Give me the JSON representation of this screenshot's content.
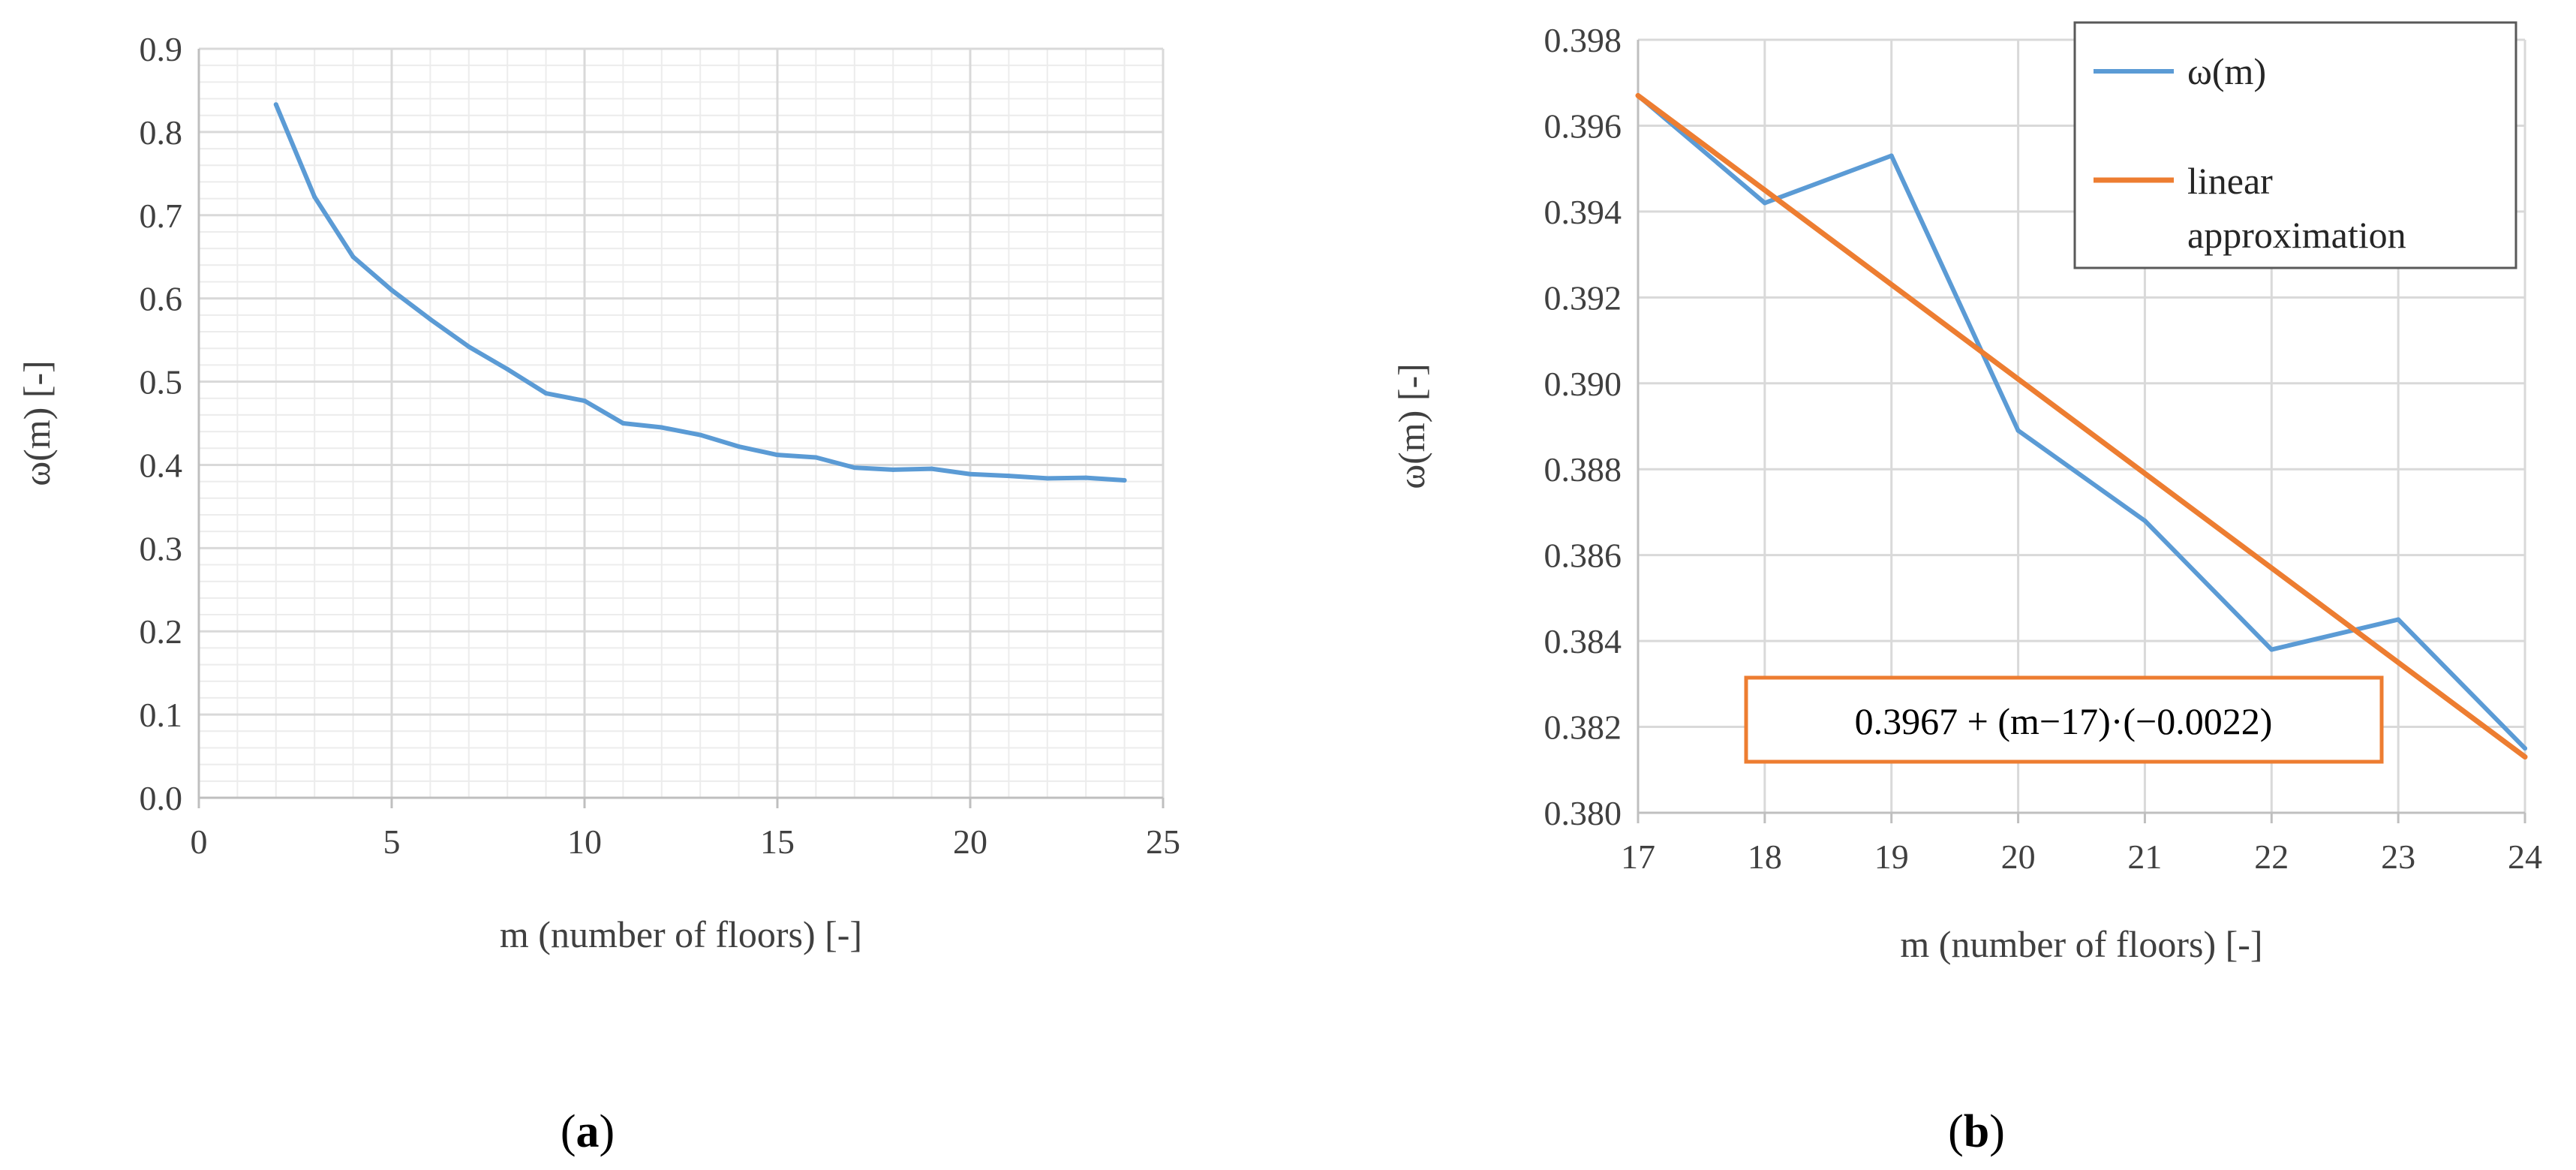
{
  "chart_data": [
    {
      "type": "line",
      "panel_label": "a",
      "xlabel": "m (number of floors) [-]",
      "ylabel": "ω(m) [-]",
      "xlim": [
        0,
        25
      ],
      "ylim": [
        0,
        0.9
      ],
      "x_ticks": [
        "0",
        "5",
        "10",
        "15",
        "20",
        "25"
      ],
      "y_ticks": [
        "0.0",
        "0.1",
        "0.2",
        "0.3",
        "0.4",
        "0.5",
        "0.6",
        "0.7",
        "0.8",
        "0.9"
      ],
      "grid": true,
      "series": [
        {
          "color": "#5B9BD5",
          "x": [
            2,
            3,
            4,
            5,
            6,
            7,
            8,
            9,
            10,
            11,
            12,
            13,
            14,
            15,
            16,
            17,
            18,
            19,
            20,
            21,
            22,
            23,
            24
          ],
          "y": [
            0.833,
            0.722,
            0.65,
            0.61,
            0.575,
            0.542,
            0.515,
            0.486,
            0.477,
            0.45,
            0.445,
            0.436,
            0.422,
            0.412,
            0.409,
            0.3967,
            0.3942,
            0.3953,
            0.3889,
            0.3868,
            0.3838,
            0.3845,
            0.3815
          ]
        }
      ]
    },
    {
      "type": "line",
      "panel_label": "b",
      "xlabel": "m (number of floors) [-]",
      "ylabel": "ω(m) [-]",
      "xlim": [
        17,
        24
      ],
      "ylim": [
        0.38,
        0.398
      ],
      "x_ticks": [
        "17",
        "18",
        "19",
        "20",
        "21",
        "22",
        "23",
        "24"
      ],
      "y_ticks": [
        "0.380",
        "0.382",
        "0.384",
        "0.386",
        "0.388",
        "0.390",
        "0.392",
        "0.394",
        "0.396",
        "0.398"
      ],
      "grid": true,
      "legend_position": "top-right",
      "series": [
        {
          "name": "ω(m)",
          "color": "#5B9BD5",
          "x": [
            17,
            18,
            19,
            20,
            21,
            22,
            23,
            24
          ],
          "y": [
            0.3967,
            0.3942,
            0.3953,
            0.3889,
            0.3868,
            0.3838,
            0.3845,
            0.3815
          ]
        },
        {
          "name": "linear approximation",
          "name_lines": [
            "linear",
            "approximation"
          ],
          "color": "#ED7D31",
          "x": [
            17,
            24
          ],
          "y": [
            0.3967,
            0.3813
          ]
        }
      ],
      "annotation": "0.3967 + (m−17)·(−0.0022)"
    }
  ]
}
